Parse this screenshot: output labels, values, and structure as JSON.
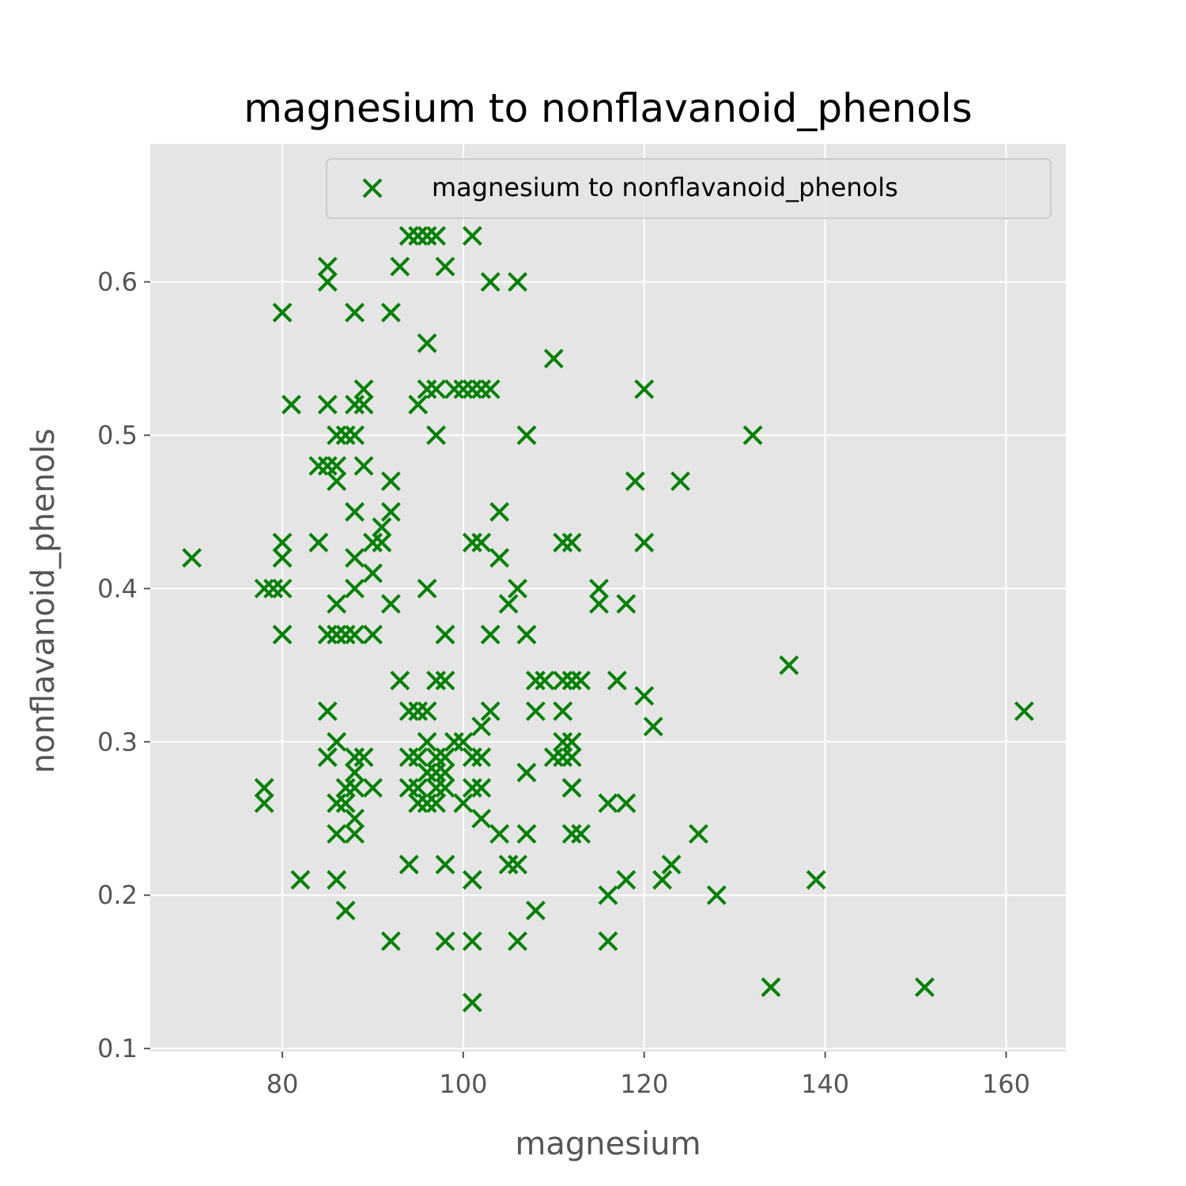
{
  "chart_data": {
    "type": "scatter",
    "title": "magnesium to nonflavanoid_phenols",
    "xlabel": "magnesium",
    "ylabel": "nonflavanoid_phenols",
    "xlim": [
      65.4,
      166.6
    ],
    "ylim": [
      0.098,
      0.69
    ],
    "xticks": [
      80,
      100,
      120,
      140,
      160
    ],
    "yticks": [
      0.1,
      0.2,
      0.3,
      0.4,
      0.5,
      0.6
    ],
    "xtick_labels": [
      "80",
      "100",
      "120",
      "140",
      "160"
    ],
    "ytick_labels": [
      "0.1",
      "0.2",
      "0.3",
      "0.4",
      "0.5",
      "0.6"
    ],
    "grid": true,
    "legend_position": "upper right",
    "marker": "x",
    "color": "#008000",
    "background": "#e5e5e5",
    "series": [
      {
        "name": "magnesium to nonflavanoid_phenols",
        "points": [
          [
            70,
            0.42
          ],
          [
            78,
            0.27
          ],
          [
            78,
            0.26
          ],
          [
            78,
            0.4
          ],
          [
            79,
            0.4
          ],
          [
            80,
            0.58
          ],
          [
            80,
            0.43
          ],
          [
            80,
            0.42
          ],
          [
            80,
            0.4
          ],
          [
            80,
            0.37
          ],
          [
            81,
            0.52
          ],
          [
            82,
            0.21
          ],
          [
            84,
            0.48
          ],
          [
            84,
            0.43
          ],
          [
            85,
            0.61
          ],
          [
            85,
            0.6
          ],
          [
            85,
            0.52
          ],
          [
            85,
            0.48
          ],
          [
            85,
            0.37
          ],
          [
            85,
            0.32
          ],
          [
            85,
            0.29
          ],
          [
            86,
            0.5
          ],
          [
            86,
            0.48
          ],
          [
            86,
            0.47
          ],
          [
            86,
            0.39
          ],
          [
            86,
            0.37
          ],
          [
            86,
            0.3
          ],
          [
            86,
            0.26
          ],
          [
            86,
            0.24
          ],
          [
            86,
            0.21
          ],
          [
            87,
            0.5
          ],
          [
            87,
            0.37
          ],
          [
            87,
            0.27
          ],
          [
            87,
            0.26
          ],
          [
            87,
            0.19
          ],
          [
            88,
            0.58
          ],
          [
            88,
            0.52
          ],
          [
            88,
            0.5
          ],
          [
            88,
            0.45
          ],
          [
            88,
            0.42
          ],
          [
            88,
            0.4
          ],
          [
            88,
            0.37
          ],
          [
            88,
            0.29
          ],
          [
            88,
            0.28
          ],
          [
            88,
            0.27
          ],
          [
            88,
            0.25
          ],
          [
            88,
            0.24
          ],
          [
            89,
            0.53
          ],
          [
            89,
            0.52
          ],
          [
            89,
            0.48
          ],
          [
            89,
            0.29
          ],
          [
            90,
            0.43
          ],
          [
            90,
            0.41
          ],
          [
            90,
            0.37
          ],
          [
            90,
            0.27
          ],
          [
            91,
            0.44
          ],
          [
            91,
            0.43
          ],
          [
            92,
            0.58
          ],
          [
            92,
            0.47
          ],
          [
            92,
            0.45
          ],
          [
            92,
            0.39
          ],
          [
            92,
            0.17
          ],
          [
            93,
            0.61
          ],
          [
            93,
            0.34
          ],
          [
            94,
            0.63
          ],
          [
            94,
            0.32
          ],
          [
            94,
            0.29
          ],
          [
            94,
            0.27
          ],
          [
            94,
            0.22
          ],
          [
            95,
            0.63
          ],
          [
            95,
            0.52
          ],
          [
            95,
            0.32
          ],
          [
            95,
            0.29
          ],
          [
            95,
            0.27
          ],
          [
            95,
            0.26
          ],
          [
            96,
            0.63
          ],
          [
            96,
            0.56
          ],
          [
            96,
            0.53
          ],
          [
            96,
            0.4
          ],
          [
            96,
            0.32
          ],
          [
            96,
            0.3
          ],
          [
            96,
            0.28
          ],
          [
            96,
            0.26
          ],
          [
            97,
            0.63
          ],
          [
            97,
            0.53
          ],
          [
            97,
            0.5
          ],
          [
            97,
            0.34
          ],
          [
            97,
            0.29
          ],
          [
            97,
            0.28
          ],
          [
            97,
            0.27
          ],
          [
            97,
            0.26
          ],
          [
            98,
            0.61
          ],
          [
            98,
            0.37
          ],
          [
            98,
            0.34
          ],
          [
            98,
            0.29
          ],
          [
            98,
            0.28
          ],
          [
            98,
            0.27
          ],
          [
            98,
            0.22
          ],
          [
            98,
            0.17
          ],
          [
            99,
            0.53
          ],
          [
            99,
            0.3
          ],
          [
            100,
            0.53
          ],
          [
            100,
            0.3
          ],
          [
            100,
            0.26
          ],
          [
            101,
            0.63
          ],
          [
            101,
            0.53
          ],
          [
            101,
            0.43
          ],
          [
            101,
            0.29
          ],
          [
            101,
            0.27
          ],
          [
            101,
            0.21
          ],
          [
            101,
            0.17
          ],
          [
            101,
            0.13
          ],
          [
            102,
            0.53
          ],
          [
            102,
            0.43
          ],
          [
            102,
            0.31
          ],
          [
            102,
            0.29
          ],
          [
            102,
            0.27
          ],
          [
            102,
            0.25
          ],
          [
            103,
            0.6
          ],
          [
            103,
            0.53
          ],
          [
            103,
            0.37
          ],
          [
            103,
            0.32
          ],
          [
            104,
            0.45
          ],
          [
            104,
            0.42
          ],
          [
            104,
            0.24
          ],
          [
            105,
            0.39
          ],
          [
            105,
            0.22
          ],
          [
            106,
            0.6
          ],
          [
            106,
            0.4
          ],
          [
            106,
            0.22
          ],
          [
            106,
            0.17
          ],
          [
            107,
            0.5
          ],
          [
            107,
            0.37
          ],
          [
            107,
            0.28
          ],
          [
            107,
            0.24
          ],
          [
            108,
            0.34
          ],
          [
            108,
            0.32
          ],
          [
            108,
            0.19
          ],
          [
            109,
            0.34
          ],
          [
            110,
            0.55
          ],
          [
            110,
            0.29
          ],
          [
            111,
            0.43
          ],
          [
            111,
            0.34
          ],
          [
            111,
            0.32
          ],
          [
            111,
            0.3
          ],
          [
            111,
            0.29
          ],
          [
            112,
            0.43
          ],
          [
            112,
            0.34
          ],
          [
            112,
            0.3
          ],
          [
            112,
            0.29
          ],
          [
            112,
            0.27
          ],
          [
            112,
            0.24
          ],
          [
            113,
            0.34
          ],
          [
            113,
            0.24
          ],
          [
            115,
            0.4
          ],
          [
            115,
            0.39
          ],
          [
            116,
            0.26
          ],
          [
            116,
            0.2
          ],
          [
            116,
            0.17
          ],
          [
            117,
            0.34
          ],
          [
            118,
            0.39
          ],
          [
            118,
            0.26
          ],
          [
            118,
            0.21
          ],
          [
            119,
            0.47
          ],
          [
            120,
            0.53
          ],
          [
            120,
            0.43
          ],
          [
            120,
            0.33
          ],
          [
            121,
            0.31
          ],
          [
            122,
            0.21
          ],
          [
            123,
            0.22
          ],
          [
            124,
            0.47
          ],
          [
            126,
            0.24
          ],
          [
            128,
            0.2
          ],
          [
            132,
            0.5
          ],
          [
            134,
            0.14
          ],
          [
            136,
            0.35
          ],
          [
            139,
            0.21
          ],
          [
            151,
            0.14
          ],
          [
            162,
            0.32
          ]
        ]
      }
    ]
  }
}
